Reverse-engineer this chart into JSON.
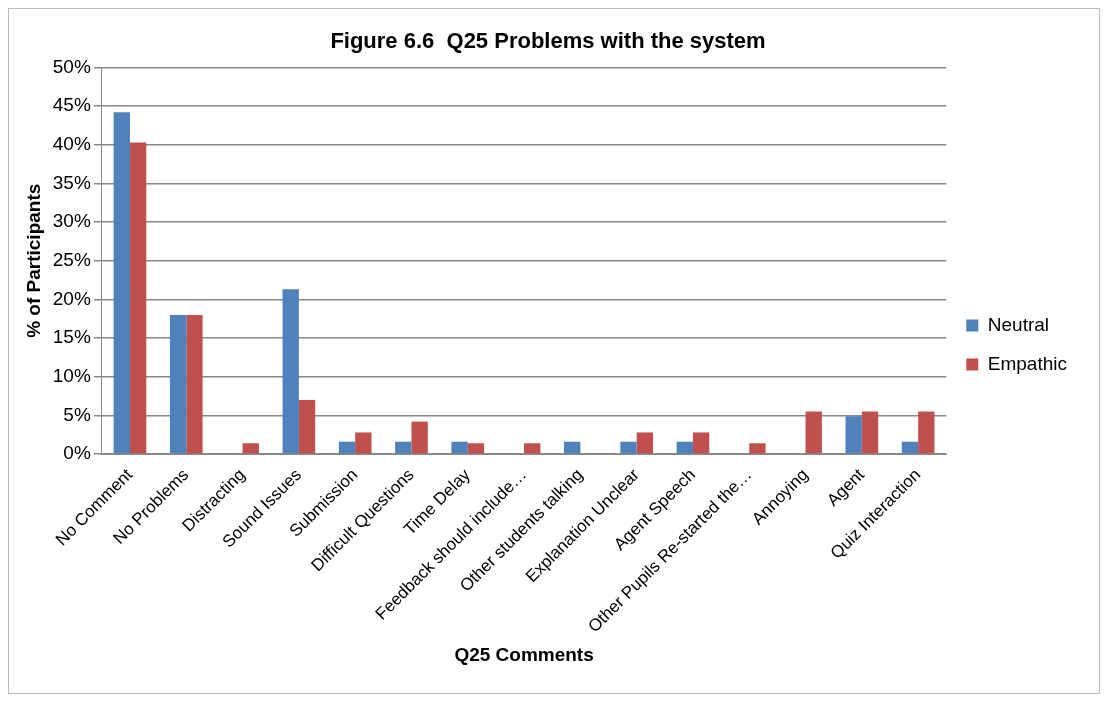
{
  "chart_data": {
    "type": "bar",
    "title": "Figure 6.6  Q25 Problems with the system",
    "xlabel": "Q25 Comments",
    "ylabel": "% of Participants",
    "categories": [
      "No Comment",
      "No Problems",
      "Distracting",
      "Sound Issues",
      "Submission",
      "Difficult Questions",
      "Time Delay",
      "Feedback should include…",
      "Other students talking",
      "Explanation Unclear",
      "Agent Speech",
      "Other Pupils Re-started the…",
      "Annoying",
      "Agent",
      "Quiz Interaction"
    ],
    "series": [
      {
        "name": "Neutral",
        "color": "#4f81bd",
        "values": [
          44.2,
          18.0,
          0,
          21.3,
          1.6,
          1.6,
          1.6,
          0,
          1.6,
          1.6,
          1.6,
          0,
          0,
          4.9,
          1.6
        ]
      },
      {
        "name": "Empathic",
        "color": "#c0504d",
        "values": [
          40.3,
          18.0,
          1.4,
          7.0,
          2.8,
          4.2,
          1.4,
          1.4,
          0,
          2.8,
          2.8,
          1.4,
          5.5,
          5.5,
          5.5
        ]
      }
    ],
    "ylim": [
      0,
      50
    ],
    "yticks": [
      {
        "value": 0,
        "label": "0%"
      },
      {
        "value": 5,
        "label": "5%"
      },
      {
        "value": 10,
        "label": "10%"
      },
      {
        "value": 15,
        "label": "15%"
      },
      {
        "value": 20,
        "label": "20%"
      },
      {
        "value": 25,
        "label": "25%"
      },
      {
        "value": 30,
        "label": "30%"
      },
      {
        "value": 35,
        "label": "35%"
      },
      {
        "value": 40,
        "label": "40%"
      },
      {
        "value": 45,
        "label": "45%"
      },
      {
        "value": 50,
        "label": "50%"
      }
    ],
    "grid": "y",
    "legend": "right"
  }
}
